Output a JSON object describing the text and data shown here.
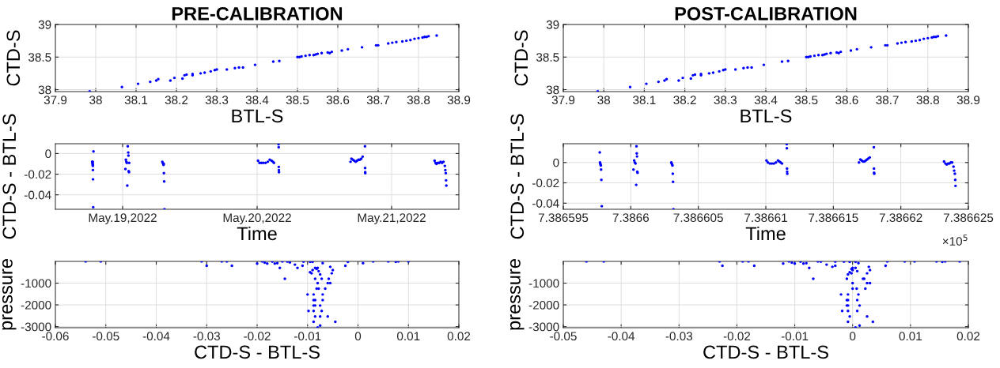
{
  "chart_data": [
    {
      "type": "scatter",
      "title": "PRE-CALIBRATION",
      "xlabel": "BTL-S",
      "ylabel": "CTD-S",
      "marker": "circle",
      "grid": true,
      "xlim": [
        37.9,
        38.9
      ],
      "ylim": [
        37.97,
        39
      ],
      "xticks": [
        37.9,
        38,
        38.1,
        38.2,
        38.3,
        38.4,
        38.5,
        38.6,
        38.7,
        38.8,
        38.9
      ],
      "yticks": [
        38,
        38.5,
        39
      ],
      "series": [
        {
          "color": "#0000ff",
          "x": [
            37.985,
            38.065,
            38.105,
            38.135,
            38.15,
            38.155,
            38.185,
            38.195,
            38.215,
            38.22,
            38.225,
            38.24,
            38.24,
            38.26,
            38.27,
            38.285,
            38.295,
            38.3,
            38.325,
            38.345,
            38.355,
            38.365,
            38.395,
            38.44,
            38.455,
            38.5,
            38.505,
            38.51,
            38.52,
            38.53,
            38.54,
            38.545,
            38.55,
            38.56,
            38.575,
            38.58,
            38.585,
            38.61,
            38.625,
            38.66,
            38.695,
            38.7,
            38.725,
            38.735,
            38.745,
            38.76,
            38.77,
            38.78,
            38.79,
            38.8,
            38.81,
            38.815,
            38.82,
            38.825,
            38.845
          ],
          "values": [
            37.975,
            38.04,
            38.09,
            38.12,
            38.14,
            38.16,
            38.14,
            38.18,
            38.17,
            38.22,
            38.23,
            38.22,
            38.24,
            38.25,
            38.26,
            38.28,
            38.3,
            38.31,
            38.31,
            38.33,
            38.34,
            38.34,
            38.38,
            38.43,
            38.44,
            38.5,
            38.5,
            38.51,
            38.52,
            38.53,
            38.53,
            38.54,
            38.55,
            38.56,
            38.57,
            38.56,
            38.58,
            38.6,
            38.62,
            38.65,
            38.68,
            38.68,
            38.71,
            38.72,
            38.73,
            38.74,
            38.75,
            38.76,
            38.78,
            38.79,
            38.8,
            38.81,
            38.81,
            38.82,
            38.83
          ]
        }
      ]
    },
    {
      "type": "scatter",
      "title": "POST-CALIBRATION",
      "xlabel": "BTL-S",
      "ylabel": "CTD-S",
      "marker": "circle",
      "grid": true,
      "xlim": [
        37.9,
        38.9
      ],
      "ylim": [
        37.97,
        39
      ],
      "xticks": [
        37.9,
        38,
        38.1,
        38.2,
        38.3,
        38.4,
        38.5,
        38.6,
        38.7,
        38.8,
        38.9
      ],
      "yticks": [
        38,
        38.5,
        39
      ],
      "series": [
        {
          "color": "#0000ff",
          "x": [
            37.985,
            38.065,
            38.105,
            38.135,
            38.15,
            38.155,
            38.185,
            38.195,
            38.215,
            38.22,
            38.225,
            38.24,
            38.24,
            38.26,
            38.27,
            38.285,
            38.295,
            38.3,
            38.325,
            38.345,
            38.355,
            38.365,
            38.395,
            38.44,
            38.455,
            38.5,
            38.505,
            38.51,
            38.52,
            38.53,
            38.54,
            38.545,
            38.55,
            38.56,
            38.575,
            38.58,
            38.585,
            38.61,
            38.625,
            38.66,
            38.695,
            38.7,
            38.725,
            38.735,
            38.745,
            38.76,
            38.77,
            38.78,
            38.79,
            38.8,
            38.81,
            38.815,
            38.82,
            38.825,
            38.845
          ],
          "values": [
            37.975,
            38.04,
            38.09,
            38.12,
            38.14,
            38.16,
            38.14,
            38.18,
            38.17,
            38.22,
            38.23,
            38.22,
            38.24,
            38.25,
            38.26,
            38.28,
            38.3,
            38.31,
            38.31,
            38.33,
            38.34,
            38.34,
            38.38,
            38.43,
            38.44,
            38.5,
            38.5,
            38.51,
            38.52,
            38.53,
            38.53,
            38.54,
            38.55,
            38.56,
            38.57,
            38.56,
            38.58,
            38.6,
            38.62,
            38.65,
            38.68,
            38.68,
            38.71,
            38.72,
            38.73,
            38.74,
            38.75,
            38.76,
            38.78,
            38.79,
            38.8,
            38.81,
            38.81,
            38.82,
            38.83
          ]
        }
      ]
    },
    {
      "type": "scatter",
      "xlabel": "Time",
      "ylabel": "CTD-S - BTL-S",
      "marker": "circle",
      "grid": true,
      "xlim": [
        "2022-05-18T12:00",
        "2022-05-21T12:00"
      ],
      "ylim": [
        -0.054,
        0.0095
      ],
      "xticks": [
        {
          "value": "2022-05-19",
          "label": "May.19,2022"
        },
        {
          "value": "2022-05-20",
          "label": "May.20,2022"
        },
        {
          "value": "2022-05-21",
          "label": "May.21,2022"
        }
      ],
      "yticks": [
        -0.04,
        -0.02,
        0
      ],
      "series": [
        {
          "color": "#0000ff",
          "x": [
            "2022-05-18T18:35",
            "2022-05-18T18:36",
            "2022-05-18T18:37",
            "2022-05-18T18:38",
            "2022-05-18T18:39",
            "2022-05-18T18:40",
            "2022-05-18T18:41",
            "2022-05-18T18:42",
            "2022-05-18T18:43",
            "2022-05-18T18:45",
            "2022-05-18T18:48",
            "2022-05-19T00:30",
            "2022-05-19T00:35",
            "2022-05-19T00:40",
            "2022-05-19T00:45",
            "2022-05-19T00:50",
            "2022-05-19T00:55",
            "2022-05-19T01:00",
            "2022-05-19T01:02",
            "2022-05-19T01:05",
            "2022-05-19T01:08",
            "2022-05-19T01:10",
            "2022-05-19T07:05",
            "2022-05-19T07:10",
            "2022-05-19T07:15",
            "2022-05-19T07:18",
            "2022-05-19T07:20",
            "2022-05-19T07:22",
            "2022-05-19T07:25",
            "2022-05-19T07:28",
            "2022-05-20T00:10",
            "2022-05-20T00:25",
            "2022-05-20T00:45",
            "2022-05-20T01:05",
            "2022-05-20T01:30",
            "2022-05-20T01:55",
            "2022-05-20T02:15",
            "2022-05-20T02:35",
            "2022-05-20T02:50",
            "2022-05-20T03:00",
            "2022-05-20T03:50",
            "2022-05-20T03:51",
            "2022-05-20T03:52",
            "2022-05-20T03:53",
            "2022-05-20T03:54",
            "2022-05-20T16:40",
            "2022-05-20T16:50",
            "2022-05-20T17:05",
            "2022-05-20T17:20",
            "2022-05-20T17:35",
            "2022-05-20T17:50",
            "2022-05-20T18:05",
            "2022-05-20T18:20",
            "2022-05-20T18:35",
            "2022-05-20T18:50",
            "2022-05-20T19:15",
            "2022-05-20T19:16",
            "2022-05-20T19:17",
            "2022-05-20T19:18",
            "2022-05-21T07:40",
            "2022-05-21T07:50",
            "2022-05-21T08:00",
            "2022-05-21T08:15",
            "2022-05-21T08:30",
            "2022-05-21T08:45",
            "2022-05-21T09:00",
            "2022-05-21T09:15",
            "2022-05-21T09:30",
            "2022-05-21T09:35",
            "2022-05-21T09:40",
            "2022-05-21T09:43",
            "2022-05-21T09:46"
          ],
          "values": [
            -0.008,
            -0.008,
            -0.009,
            -0.008,
            -0.01,
            -0.011,
            -0.012,
            -0.016,
            -0.025,
            -0.052,
            0.002,
            -0.015,
            -0.006,
            -0.008,
            -0.009,
            -0.031,
            0.007,
            0.001,
            -0.002,
            -0.017,
            -0.018,
            -0.009,
            -0.008,
            -0.009,
            -0.01,
            -0.011,
            -0.01,
            -0.019,
            -0.027,
            -0.054,
            -0.007,
            -0.009,
            -0.009,
            -0.009,
            -0.009,
            -0.008,
            -0.006,
            -0.007,
            -0.008,
            -0.009,
            0.009,
            0.006,
            -0.013,
            -0.016,
            -0.018,
            -0.008,
            -0.005,
            -0.006,
            -0.007,
            -0.008,
            -0.007,
            -0.006,
            -0.006,
            -0.005,
            -0.003,
            0.007,
            -0.014,
            -0.018,
            -0.019,
            -0.007,
            -0.009,
            -0.01,
            -0.009,
            -0.009,
            -0.008,
            -0.009,
            -0.008,
            -0.012,
            -0.016,
            -0.019,
            -0.026,
            -0.031
          ]
        }
      ]
    },
    {
      "type": "scatter",
      "xlabel": "Time",
      "ylabel": "CTD-S - BTL-S",
      "marker": "circle",
      "grid": true,
      "annotations": [
        "×10$^{5}$"
      ],
      "xlim": [
        7.386595,
        7.386625
      ],
      "ylim": [
        -0.046,
        0.0185
      ],
      "xticks": [
        7.386595,
        7.3866,
        7.386605,
        7.38661,
        7.386615,
        7.38662,
        7.386625
      ],
      "yticks": [
        -0.04,
        -0.02,
        0
      ],
      "series": [
        {
          "color": "#0000ff",
          "x": [
            7.3865977,
            7.38659772,
            7.38659774,
            7.38659776,
            7.38659778,
            7.3865978,
            7.38659782,
            7.38659785,
            7.3866002,
            7.38660025,
            7.3866003,
            7.38660035,
            7.3866004,
            7.38660042,
            7.38660044,
            7.38660046,
            7.38660048,
            7.3866005,
            7.386603,
            7.38660303,
            7.38660306,
            7.38660309,
            7.38660311,
            7.38660313,
            7.38660316,
            7.38661005,
            7.38661015,
            7.3866103,
            7.38661045,
            7.3866106,
            7.38661075,
            7.3866109,
            7.386611,
            7.3866111,
            7.3866112,
            7.38661155,
            7.38661156,
            7.38661157,
            7.38661158,
            7.38661159,
            7.3866169,
            7.386617,
            7.3866171,
            7.3866172,
            7.3866173,
            7.3866174,
            7.3866175,
            7.3866176,
            7.3866177,
            7.386618,
            7.38661801,
            7.38661802,
            7.38661803,
            7.3866232,
            7.3866233,
            7.3866234,
            7.3866235,
            7.3866236,
            7.3866237,
            7.3866238,
            7.3866239,
            7.38662395,
            7.386624,
            7.38662403,
            7.38662405
          ],
          "values": [
            0.01,
            0,
            -0.001,
            -0.002,
            -0.003,
            -0.007,
            -0.017,
            -0.043,
            -0.007,
            0.002,
            0,
            -0.001,
            -0.022,
            0.016,
            0.009,
            0.006,
            -0.009,
            -0.01,
            0,
            -0.001,
            -0.002,
            -0.003,
            -0.011,
            -0.019,
            -0.046,
            0.002,
            0,
            -0.001,
            -0.001,
            -0.001,
            0,
            0.002,
            0.001,
            0,
            -0.001,
            0.018,
            0.014,
            -0.006,
            -0.009,
            -0.011,
            0,
            0.003,
            0.002,
            0.001,
            0.001,
            0.002,
            0.003,
            0.004,
            0.005,
            0.015,
            -0.006,
            -0.01,
            -0.011,
            0.001,
            -0.001,
            -0.002,
            -0.001,
            -0.001,
            0,
            0,
            -0.004,
            -0.008,
            -0.011,
            -0.017,
            -0.023
          ]
        }
      ]
    },
    {
      "type": "scatter",
      "xlabel": "CTD-S - BTL-S",
      "ylabel": "pressure",
      "marker": "circle",
      "grid": true,
      "xlim": [
        -0.06,
        0.02
      ],
      "ylim": [
        -3050,
        0
      ],
      "xticks": [
        -0.06,
        -0.05,
        -0.04,
        -0.03,
        -0.02,
        -0.01,
        0,
        0.01,
        0.02
      ],
      "yticks": [
        -3000,
        -2000,
        -1000
      ],
      "series": [
        {
          "color": "#0000ff",
          "x": [
            -0.054,
            -0.051,
            -0.031,
            -0.03,
            -0.027,
            -0.026,
            -0.025,
            -0.02,
            -0.019,
            -0.0185,
            -0.018,
            -0.017,
            -0.0165,
            -0.016,
            -0.0155,
            -0.015,
            -0.014,
            -0.0135,
            -0.0125,
            -0.012,
            -0.011,
            -0.0108,
            -0.0095,
            -0.009,
            -0.007,
            -0.002,
            -0.0025,
            0.001,
            0.003,
            0.006,
            0.0075,
            0.008,
            0.01,
            -0.0145,
            -0.0095,
            -0.0092,
            -0.009,
            -0.0085,
            -0.0082,
            -0.008,
            -0.0078,
            -0.0075,
            -0.0085,
            -0.0072,
            -0.0055,
            -0.005,
            -0.0052,
            -0.0058,
            -0.006,
            -0.0055,
            -0.008,
            -0.0082,
            -0.0078,
            -0.0065,
            -0.01,
            -0.0088,
            -0.007,
            -0.0088,
            -0.0085,
            -0.007,
            -0.0088,
            -0.0085,
            -0.0075,
            -0.0098,
            -0.0088,
            -0.0072,
            -0.0085,
            -0.0075,
            -0.006,
            -0.0088,
            -0.0045,
            -0.0075,
            -0.008
          ],
          "values": [
            -5,
            -5,
            -5,
            -200,
            -5,
            -5,
            -200,
            -100,
            -5,
            -60,
            -100,
            -10,
            -100,
            -80,
            -300,
            -5,
            -10,
            -50,
            -150,
            -300,
            -200,
            -10,
            -20,
            -20,
            -80,
            -20,
            -200,
            -80,
            -5,
            -5,
            -20,
            -5,
            -5,
            -800,
            -500,
            -550,
            -400,
            -300,
            -350,
            -300,
            -450,
            -600,
            -800,
            -800,
            -250,
            -400,
            -550,
            -800,
            -1000,
            -1000,
            -1000,
            -1250,
            -1250,
            -1250,
            -1520,
            -1520,
            -1520,
            -1780,
            -1780,
            -1780,
            -2030,
            -2030,
            -2030,
            -2280,
            -2280,
            -2280,
            -2530,
            -2530,
            -2530,
            -2780,
            -2780,
            -2950,
            -3040
          ]
        }
      ]
    },
    {
      "type": "scatter",
      "xlabel": "CTD-S - BTL-S",
      "ylabel": "pressure",
      "marker": "circle",
      "grid": true,
      "xlim": [
        -0.05,
        0.02
      ],
      "ylim": [
        -3050,
        0
      ],
      "xticks": [
        -0.05,
        -0.04,
        -0.03,
        -0.02,
        -0.01,
        0,
        0.01,
        0.02
      ],
      "yticks": [
        -3000,
        -2000,
        -1000
      ],
      "series": [
        {
          "color": "#0000ff",
          "x": [
            -0.046,
            -0.043,
            -0.023,
            -0.0225,
            -0.019,
            -0.018,
            -0.017,
            -0.012,
            -0.011,
            -0.0105,
            -0.01,
            -0.009,
            -0.0085,
            -0.008,
            -0.0075,
            -0.006,
            -0.0055,
            -0.0045,
            -0.003,
            -0.0035,
            -0.003,
            -0.0015,
            -0.0005,
            0.0005,
            0.001,
            0.006,
            0.0057,
            0.009,
            0.0107,
            0.0145,
            0.0155,
            0.016,
            0.0185,
            -0.0068,
            -0.0005,
            -0.0002,
            0,
            0.0005,
            -0.0002,
            0,
            0.0008,
            -0.0008,
            -0.001,
            0.0018,
            0.0028,
            0.003,
            0.0025,
            0.002,
            0.0025,
            0.003,
            0,
            0,
            0.0007,
            0.0022,
            -0.002,
            -0.0008,
            0.001,
            -0.001,
            -0.0008,
            0.0008,
            -0.001,
            -0.0008,
            0.0012,
            -0.0018,
            -0.0008,
            0.0008,
            -0.0005,
            0.0025,
            -0.0008,
            0.0035,
            0.0012,
            0.0005
          ],
          "values": [
            -5,
            -5,
            -5,
            -200,
            -5,
            -5,
            -200,
            -100,
            -5,
            -60,
            -100,
            -10,
            -100,
            -80,
            -300,
            -5,
            -10,
            -150,
            -10,
            -250,
            -200,
            -10,
            -20,
            -20,
            -80,
            -5,
            -200,
            -5,
            -5,
            -5,
            -20,
            -5,
            -5,
            -800,
            -500,
            -550,
            -400,
            -300,
            -350,
            -300,
            -450,
            -600,
            -800,
            -800,
            -250,
            -400,
            -550,
            -800,
            -1000,
            -1000,
            -1000,
            -1250,
            -1250,
            -1250,
            -1520,
            -1520,
            -1520,
            -1780,
            -1780,
            -1780,
            -2030,
            -2030,
            -2030,
            -2280,
            -2280,
            -2280,
            -2530,
            -2530,
            -2780,
            -2780,
            -2950,
            -3040
          ]
        }
      ]
    }
  ]
}
